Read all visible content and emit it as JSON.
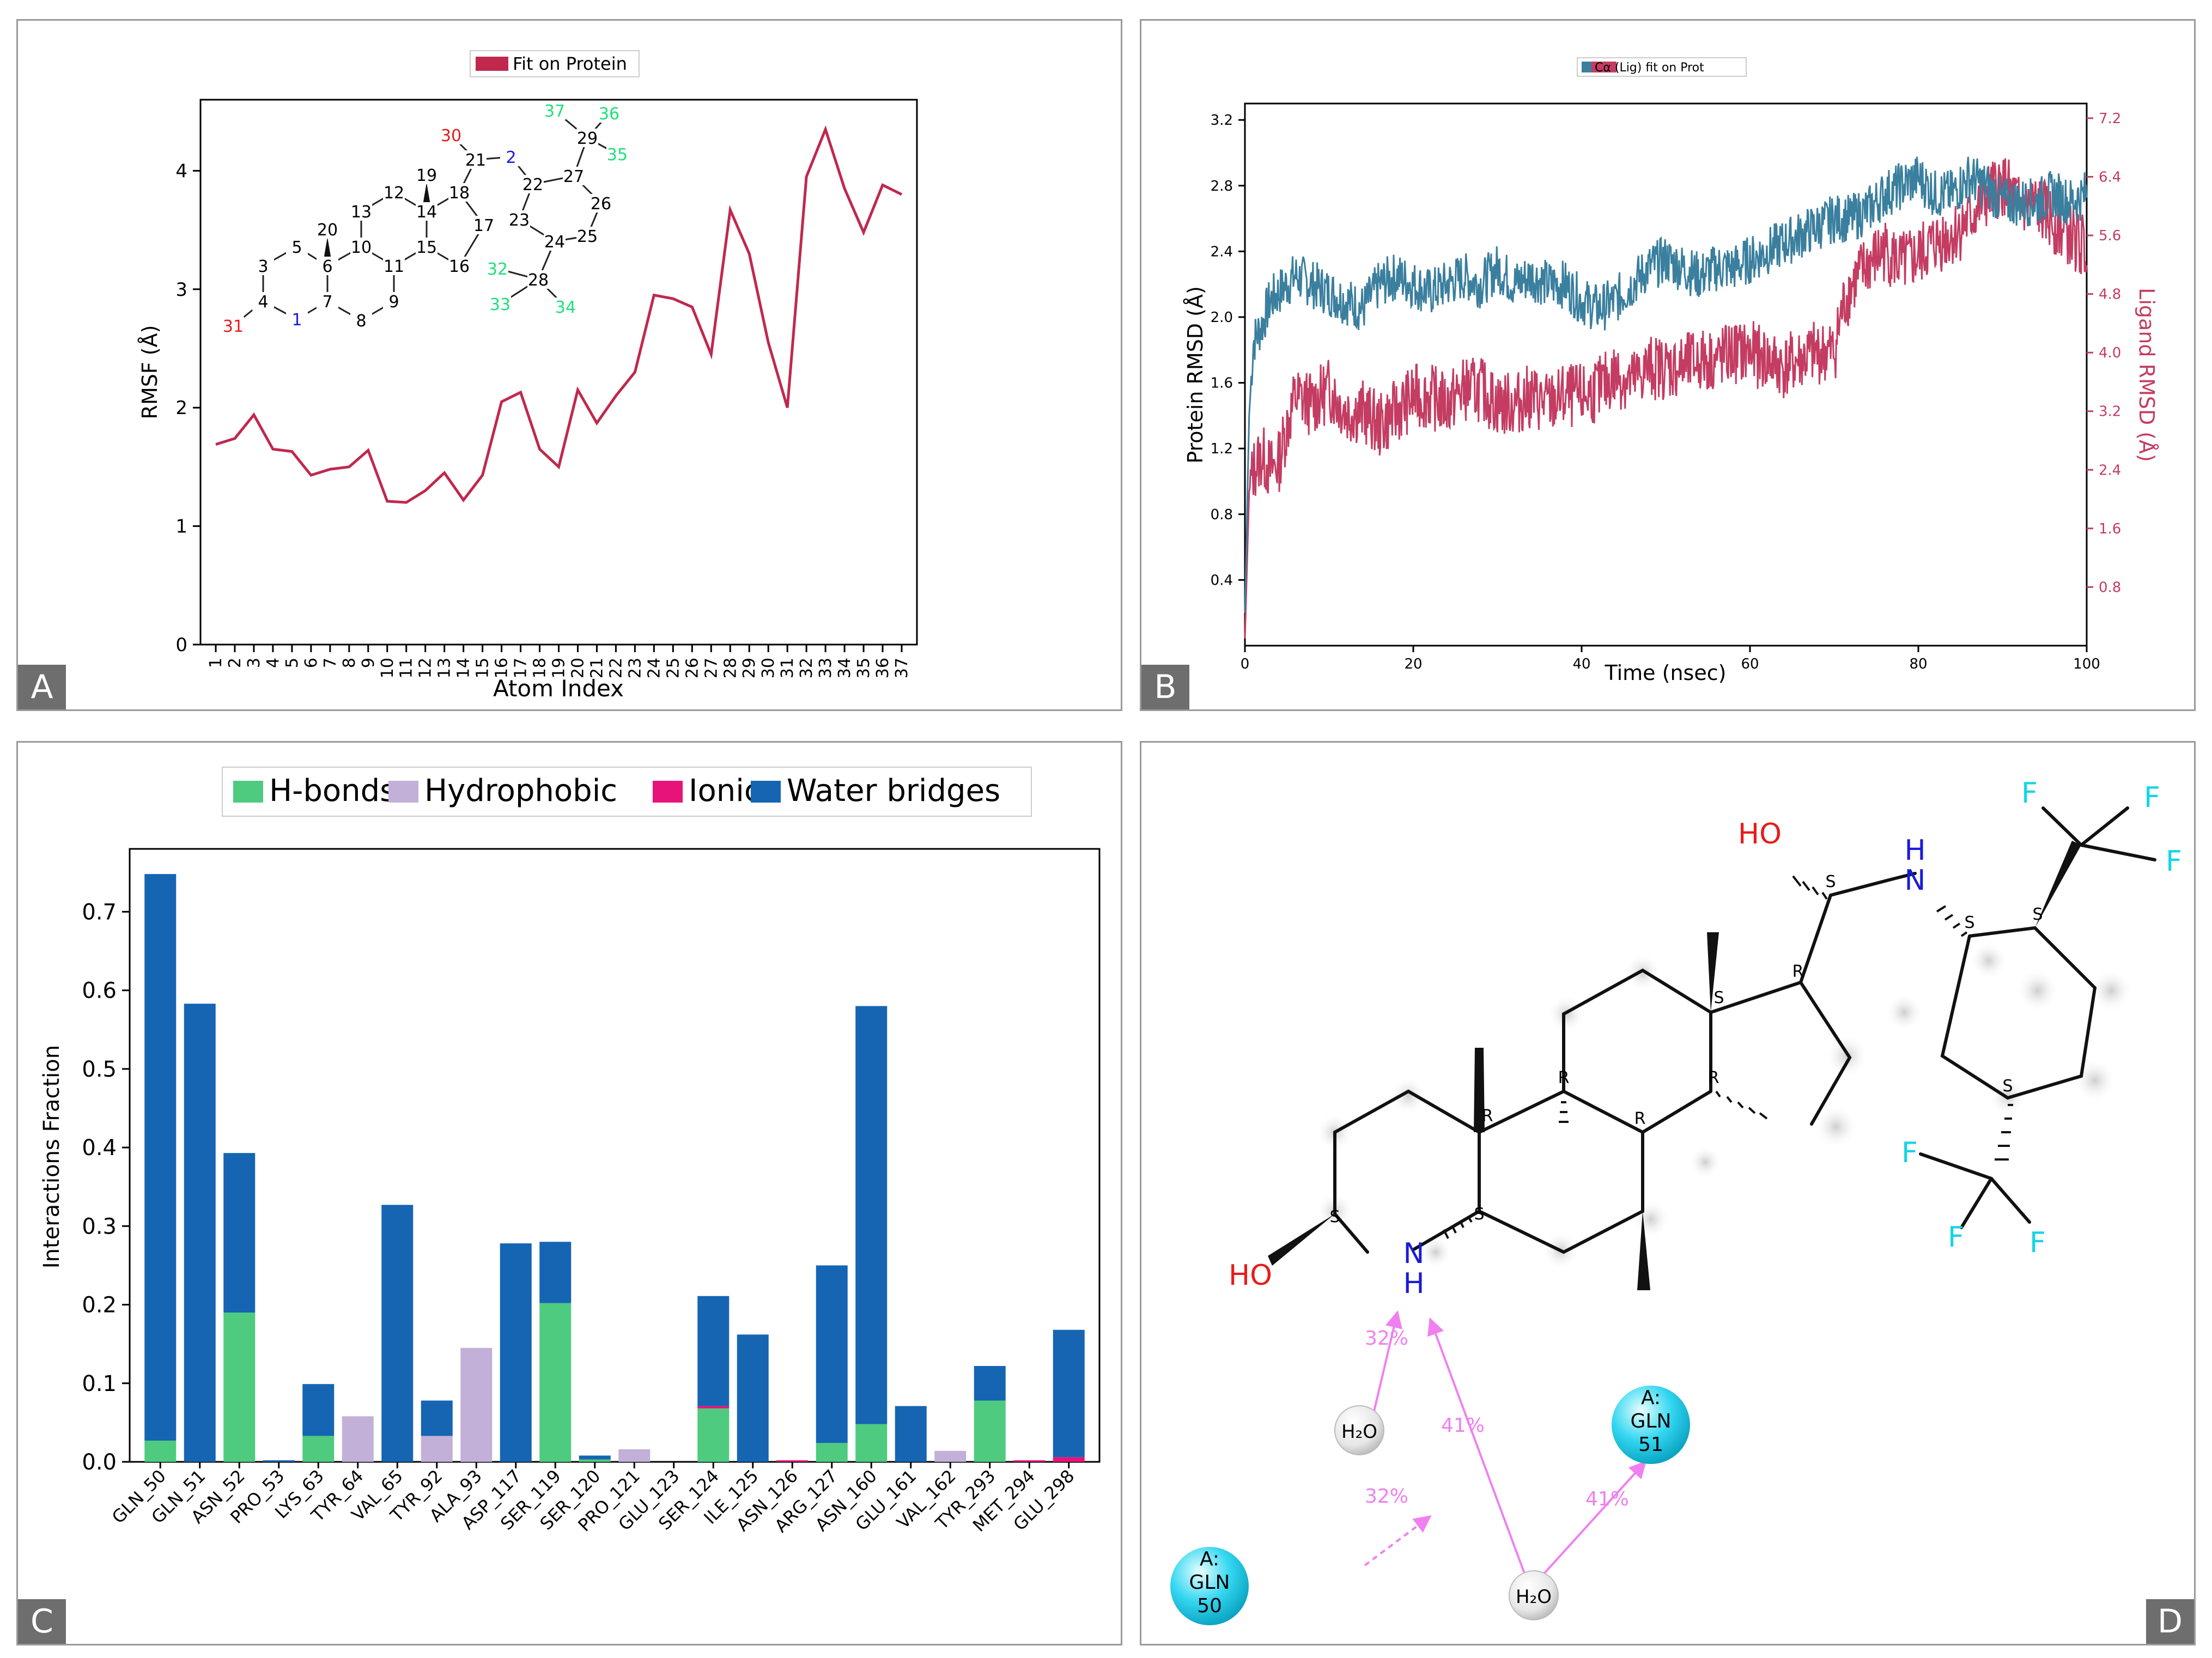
{
  "panels": {
    "a": "A",
    "b": "B",
    "c": "C",
    "d": "D"
  },
  "chart_data": [
    {
      "panel": "A",
      "type": "line",
      "legend": "Fit on Protein",
      "xlabel": "Atom Index",
      "ylabel": "RMSF (Å)",
      "x": [
        1,
        2,
        3,
        4,
        5,
        6,
        7,
        8,
        9,
        10,
        11,
        12,
        13,
        14,
        15,
        16,
        17,
        18,
        19,
        20,
        21,
        22,
        23,
        24,
        25,
        26,
        27,
        28,
        29,
        30,
        31,
        32,
        33,
        34,
        35,
        36,
        37
      ],
      "values": [
        1.69,
        1.74,
        1.94,
        1.65,
        1.63,
        1.43,
        1.48,
        1.5,
        1.64,
        1.21,
        1.2,
        1.3,
        1.45,
        1.22,
        1.43,
        2.05,
        2.13,
        1.65,
        1.5,
        2.15,
        1.87,
        2.1,
        2.3,
        2.95,
        2.92,
        2.85,
        2.45,
        3.67,
        3.3,
        2.55,
        2.0,
        3.95,
        4.35,
        3.85,
        3.48,
        3.88,
        3.8
      ],
      "ylim": [
        0,
        4.6
      ],
      "yticks": [
        0,
        1,
        2,
        3,
        4
      ],
      "color": "#c0284e",
      "inset_atoms": [
        {
          "n": "1",
          "c": "#1a1adb"
        },
        {
          "n": "2",
          "c": "#1a1adb"
        },
        {
          "n": "3",
          "c": "#000000"
        },
        {
          "n": "4",
          "c": "#000000"
        },
        {
          "n": "5",
          "c": "#000000"
        },
        {
          "n": "6",
          "c": "#000000"
        },
        {
          "n": "7",
          "c": "#000000"
        },
        {
          "n": "8",
          "c": "#000000"
        },
        {
          "n": "9",
          "c": "#000000"
        },
        {
          "n": "10",
          "c": "#000000"
        },
        {
          "n": "11",
          "c": "#000000"
        },
        {
          "n": "12",
          "c": "#000000"
        },
        {
          "n": "13",
          "c": "#000000"
        },
        {
          "n": "14",
          "c": "#000000"
        },
        {
          "n": "15",
          "c": "#000000"
        },
        {
          "n": "16",
          "c": "#000000"
        },
        {
          "n": "17",
          "c": "#000000"
        },
        {
          "n": "18",
          "c": "#000000"
        },
        {
          "n": "19",
          "c": "#000000"
        },
        {
          "n": "20",
          "c": "#000000"
        },
        {
          "n": "21",
          "c": "#000000"
        },
        {
          "n": "22",
          "c": "#000000"
        },
        {
          "n": "23",
          "c": "#000000"
        },
        {
          "n": "24",
          "c": "#000000"
        },
        {
          "n": "25",
          "c": "#000000"
        },
        {
          "n": "26",
          "c": "#000000"
        },
        {
          "n": "27",
          "c": "#000000"
        },
        {
          "n": "28",
          "c": "#000000"
        },
        {
          "n": "29",
          "c": "#000000"
        },
        {
          "n": "30",
          "c": "#e81b1b"
        },
        {
          "n": "31",
          "c": "#e81b1b"
        },
        {
          "n": "32",
          "c": "#1ee07a"
        },
        {
          "n": "33",
          "c": "#1ee07a"
        },
        {
          "n": "34",
          "c": "#1ee07a"
        },
        {
          "n": "35",
          "c": "#1ee07a"
        },
        {
          "n": "36",
          "c": "#1ee07a"
        },
        {
          "n": "37",
          "c": "#1ee07a"
        }
      ]
    },
    {
      "panel": "B",
      "type": "line",
      "legend": "Cα   (Lig) fit on Prot",
      "xlabel": "Time (nsec)",
      "ylabel_left": "Protein RMSD (Å)",
      "ylabel_right": "Ligand RMSD (Å)",
      "xlim": [
        0,
        100
      ],
      "xticks": [
        0,
        20,
        40,
        60,
        80,
        100
      ],
      "ylim_left": [
        0,
        3.3
      ],
      "yticks_left": [
        0.4,
        0.8,
        1.2,
        1.6,
        2.0,
        2.4,
        2.8,
        3.2
      ],
      "ylim_right": [
        0,
        7.4
      ],
      "yticks_right": [
        0.8,
        1.6,
        2.4,
        3.2,
        4.0,
        4.8,
        5.6,
        6.4,
        7.2
      ],
      "series": [
        {
          "name": "Cα",
          "axis": "left",
          "color": "#3a7f9e",
          "x": [
            0,
            0.5,
            1,
            2,
            3,
            4,
            5,
            6,
            8,
            10,
            12,
            14,
            16,
            18,
            20,
            22,
            24,
            26,
            28,
            30,
            32,
            34,
            36,
            38,
            40,
            42,
            44,
            46,
            48,
            50,
            52,
            54,
            56,
            58,
            60,
            62,
            64,
            66,
            68,
            70,
            72,
            74,
            76,
            78,
            80,
            82,
            84,
            86,
            88,
            90,
            92,
            94,
            96,
            98,
            100
          ],
          "values": [
            0.2,
            1.4,
            1.85,
            1.95,
            2.1,
            2.15,
            2.2,
            2.25,
            2.2,
            2.15,
            2.1,
            2.05,
            2.2,
            2.25,
            2.2,
            2.15,
            2.2,
            2.25,
            2.2,
            2.3,
            2.2,
            2.25,
            2.2,
            2.2,
            2.1,
            2.05,
            2.1,
            2.2,
            2.3,
            2.35,
            2.3,
            2.25,
            2.3,
            2.3,
            2.35,
            2.4,
            2.45,
            2.5,
            2.55,
            2.6,
            2.6,
            2.65,
            2.75,
            2.8,
            2.85,
            2.75,
            2.75,
            2.85,
            2.8,
            2.7,
            2.7,
            2.7,
            2.75,
            2.7,
            2.75
          ]
        },
        {
          "name": "(Lig) fit on Prot",
          "axis": "right",
          "color": "#c43c62",
          "x": [
            0,
            0.5,
            1,
            2,
            3,
            4,
            5,
            6,
            8,
            10,
            12,
            14,
            16,
            18,
            20,
            22,
            24,
            26,
            28,
            30,
            32,
            34,
            36,
            38,
            40,
            42,
            44,
            46,
            48,
            50,
            52,
            54,
            56,
            58,
            60,
            62,
            64,
            66,
            68,
            70,
            71,
            72,
            74,
            76,
            78,
            80,
            82,
            84,
            86,
            88,
            90,
            92,
            94,
            96,
            98,
            100
          ],
          "values": [
            0.1,
            2.1,
            2.4,
            2.6,
            2.4,
            2.5,
            3.0,
            3.4,
            3.3,
            3.5,
            3.2,
            3.2,
            3.0,
            3.2,
            3.4,
            3.4,
            3.3,
            3.5,
            3.5,
            3.3,
            3.3,
            3.4,
            3.3,
            3.4,
            3.4,
            3.5,
            3.7,
            3.6,
            3.8,
            3.8,
            3.8,
            3.9,
            3.9,
            4.0,
            4.0,
            3.9,
            3.8,
            3.9,
            4.0,
            4.0,
            4.6,
            4.9,
            5.2,
            5.4,
            5.2,
            5.3,
            5.5,
            5.6,
            5.8,
            6.1,
            6.3,
            6.0,
            6.0,
            5.8,
            5.6,
            5.4
          ]
        }
      ]
    },
    {
      "panel": "C",
      "type": "bar",
      "stacked": true,
      "ylabel": "Interactions Fraction",
      "ylim": [
        0,
        0.78
      ],
      "yticks": [
        0.0,
        0.1,
        0.2,
        0.3,
        0.4,
        0.5,
        0.6,
        0.7
      ],
      "categories": [
        "GLN_50",
        "GLN_51",
        "ASN_52",
        "PRO_53",
        "LYS_63",
        "TYR_64",
        "VAL_65",
        "TYR_92",
        "ALA_93",
        "ASP_117",
        "SER_119",
        "SER_120",
        "PRO_121",
        "GLU_123",
        "SER_124",
        "ILE_125",
        "ASN_126",
        "ARG_127",
        "ASN_160",
        "GLU_161",
        "VAL_162",
        "TYR_293",
        "MET_294",
        "GLU_298"
      ],
      "series": [
        {
          "name": "H-bonds",
          "color": "#4ecb7f",
          "values": [
            0.027,
            0,
            0.19,
            0,
            0.033,
            0,
            0,
            0,
            0,
            0,
            0.202,
            0.003,
            0,
            0,
            0.068,
            0,
            0,
            0.024,
            0.048,
            0,
            0,
            0.078,
            0,
            0
          ]
        },
        {
          "name": "Hydrophobic",
          "color": "#c2b0d8",
          "values": [
            0,
            0,
            0,
            0,
            0,
            0.058,
            0,
            0.033,
            0.145,
            0,
            0,
            0,
            0.016,
            0,
            0,
            0,
            0,
            0,
            0,
            0,
            0.014,
            0,
            0,
            0
          ]
        },
        {
          "name": "Ionic",
          "color": "#e8137a",
          "values": [
            0,
            0,
            0,
            0,
            0,
            0,
            0,
            0,
            0,
            0,
            0,
            0,
            0,
            0,
            0.003,
            0,
            0.002,
            0,
            0,
            0,
            0,
            0,
            0.002,
            0.006
          ]
        },
        {
          "name": "Water bridges",
          "color": "#1565b3",
          "values": [
            0.721,
            0.583,
            0.203,
            0.002,
            0.066,
            0,
            0.327,
            0.045,
            0,
            0.278,
            0.078,
            0.005,
            0,
            0,
            0.14,
            0.162,
            0,
            0.226,
            0.532,
            0.071,
            0,
            0.044,
            0,
            0.162
          ]
        }
      ]
    }
  ],
  "diagram_d": {
    "atoms": {
      "ho_top": "HO",
      "ho_left": "HO",
      "n_top": "N",
      "h_top": "H",
      "n_bottom": "N",
      "h_bottom": "H",
      "f": "F"
    },
    "stereo": {
      "s": "S",
      "r": "R"
    },
    "waters": [
      "H₂O",
      "H₂O"
    ],
    "residues": [
      {
        "line1": "A:",
        "line2": "GLN",
        "line3": "50"
      },
      {
        "line1": "A:",
        "line2": "GLN",
        "line3": "51"
      }
    ],
    "percentages": [
      "32%",
      "32%",
      "41%",
      "41%"
    ]
  }
}
